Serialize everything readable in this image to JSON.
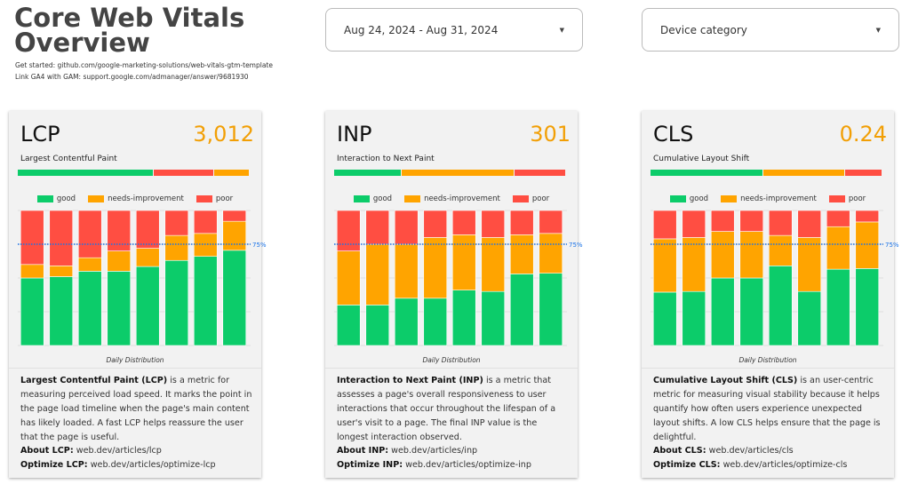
{
  "header": {
    "title_line1": "Core Web Vitals",
    "title_line2": "Overview",
    "get_started": "Get started: github.com/google-marketing-solutions/web-vitals-gtm-template",
    "link_ga4": "Link GA4 with GAM: support.google.com/admanager/answer/9681930"
  },
  "filters": {
    "date_range": "Aug 24, 2024 - Aug 31, 2024",
    "device": "Device category"
  },
  "colors": {
    "good": "#0ccc6a",
    "needs_improvement": "#ffa400",
    "poor": "#ff4e42",
    "value": "#f29f05",
    "line75": "#1a73e8"
  },
  "legend": {
    "good": "good",
    "ni": "needs-improvement",
    "poor": "poor"
  },
  "cards": [
    {
      "abbr": "LCP",
      "value": "3,012",
      "full": "Largest Contentful Paint",
      "threshold_bar": [
        {
          "status": "good",
          "fraction": 0.59
        },
        {
          "status": "poor",
          "fraction": 0.26
        },
        {
          "status": "needs_improvement",
          "fraction": 0.15
        }
      ],
      "desc_bold": "Largest Contentful Paint (LCP)",
      "desc": " is a metric for measuring perceived load speed. It marks the point in the page load timeline when the page's main content has likely loaded. A fast LCP helps reassure the user that the page is useful.",
      "about_label": "About LCP:",
      "about_link": "web.dev/articles/lcp",
      "opt_label": "Optimize LCP:",
      "opt_link": "web.dev/articles/optimize-lcp",
      "chart_data": {
        "type": "bar",
        "stacked": true,
        "xlabel": "Daily Distribution",
        "reference_line": {
          "value": 0.75,
          "label": "75%"
        },
        "ylim": [
          0,
          1
        ],
        "series": [
          {
            "name": "good",
            "values": [
              0.5,
              0.51,
              0.55,
              0.55,
              0.585,
              0.63,
              0.66,
              0.705
            ]
          },
          {
            "name": "needs-improvement",
            "values": [
              0.1,
              0.08,
              0.1,
              0.15,
              0.135,
              0.185,
              0.17,
              0.215
            ]
          },
          {
            "name": "poor",
            "values": [
              0.4,
              0.41,
              0.35,
              0.3,
              0.28,
              0.185,
              0.17,
              0.08
            ]
          }
        ]
      }
    },
    {
      "abbr": "INP",
      "value": "301",
      "full": "Interaction to Next Paint",
      "threshold_bar": [
        {
          "status": "good",
          "fraction": 0.29
        },
        {
          "status": "needs_improvement",
          "fraction": 0.49
        },
        {
          "status": "poor",
          "fraction": 0.22
        }
      ],
      "desc_bold": "Interaction to Next Paint (INP)",
      "desc": " is a metric that assesses a page's overall responsiveness to user interactions that occur throughout the lifespan of a user's visit to a page. The final INP value is the longest interaction observed.",
      "about_label": "About INP:",
      "about_link": "web.dev/articles/inp",
      "opt_label": "Optimize INP:",
      "opt_link": "web.dev/articles/optimize-inp",
      "chart_data": {
        "type": "bar",
        "stacked": true,
        "xlabel": "Daily Distribution",
        "reference_line": {
          "value": 0.75,
          "label": "75%"
        },
        "ylim": [
          0,
          1
        ],
        "series": [
          {
            "name": "good",
            "values": [
              0.3,
              0.3,
              0.35,
              0.35,
              0.41,
              0.4,
              0.53,
              0.535
            ]
          },
          {
            "name": "needs-improvement",
            "values": [
              0.4,
              0.45,
              0.4,
              0.45,
              0.41,
              0.4,
              0.29,
              0.295
            ]
          },
          {
            "name": "poor",
            "values": [
              0.3,
              0.25,
              0.25,
              0.2,
              0.18,
              0.2,
              0.18,
              0.17
            ]
          }
        ]
      }
    },
    {
      "abbr": "CLS",
      "value": "0.24",
      "full": "Cumulative Layout Shift",
      "threshold_bar": [
        {
          "status": "good",
          "fraction": 0.49
        },
        {
          "status": "needs_improvement",
          "fraction": 0.35
        },
        {
          "status": "poor",
          "fraction": 0.16
        }
      ],
      "desc_bold": "Cumulative Layout Shift (CLS)",
      "desc": " is an user-centric metric for measuring visual stability because it helps quantify how often users experience unexpected layout shifts. A low CLS helps ensure that the page is delightful.",
      "about_label": "About CLS:",
      "about_link": "web.dev/articles/cls",
      "opt_label": "Optimize CLS:",
      "opt_link": "web.dev/articles/optimize-cls",
      "chart_data": {
        "type": "bar",
        "stacked": true,
        "xlabel": "Daily Distribution",
        "reference_line": {
          "value": 0.75,
          "label": "75%"
        },
        "ylim": [
          0,
          1
        ],
        "series": [
          {
            "name": "good",
            "values": [
              0.395,
              0.4,
              0.5,
              0.5,
              0.59,
              0.4,
              0.565,
              0.57
            ]
          },
          {
            "name": "needs-improvement",
            "values": [
              0.395,
              0.4,
              0.345,
              0.345,
              0.225,
              0.4,
              0.315,
              0.345
            ]
          },
          {
            "name": "poor",
            "values": [
              0.21,
              0.2,
              0.155,
              0.155,
              0.185,
              0.2,
              0.12,
              0.085
            ]
          }
        ]
      }
    }
  ]
}
